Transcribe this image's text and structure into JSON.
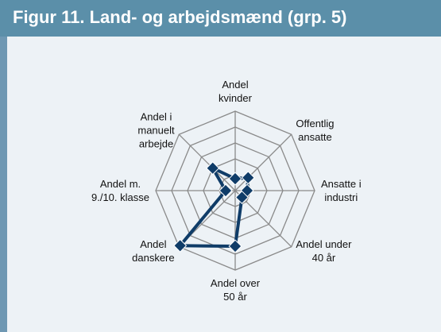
{
  "chart_data": {
    "type": "radar",
    "title": "Figur 11. Land- og arbejdsmænd (grp. 5)",
    "categories": [
      "Andel\nkvinder",
      "Offentlig\nansatte",
      "Ansatte i\nindustri",
      "Andel under\n40 år",
      "Andel over\n50 år",
      "Andel\ndanskere",
      "Andel m.\n9./10. klasse",
      "Andel i\nmanuelt\narbejde"
    ],
    "series": [
      {
        "color": "#0f3c68",
        "values": [
          15,
          23,
          15,
          12,
          70,
          98,
          12,
          40
        ]
      }
    ],
    "rlim": [
      0,
      100
    ],
    "rticks": [
      20,
      40,
      60,
      80,
      100
    ],
    "grid": true
  }
}
